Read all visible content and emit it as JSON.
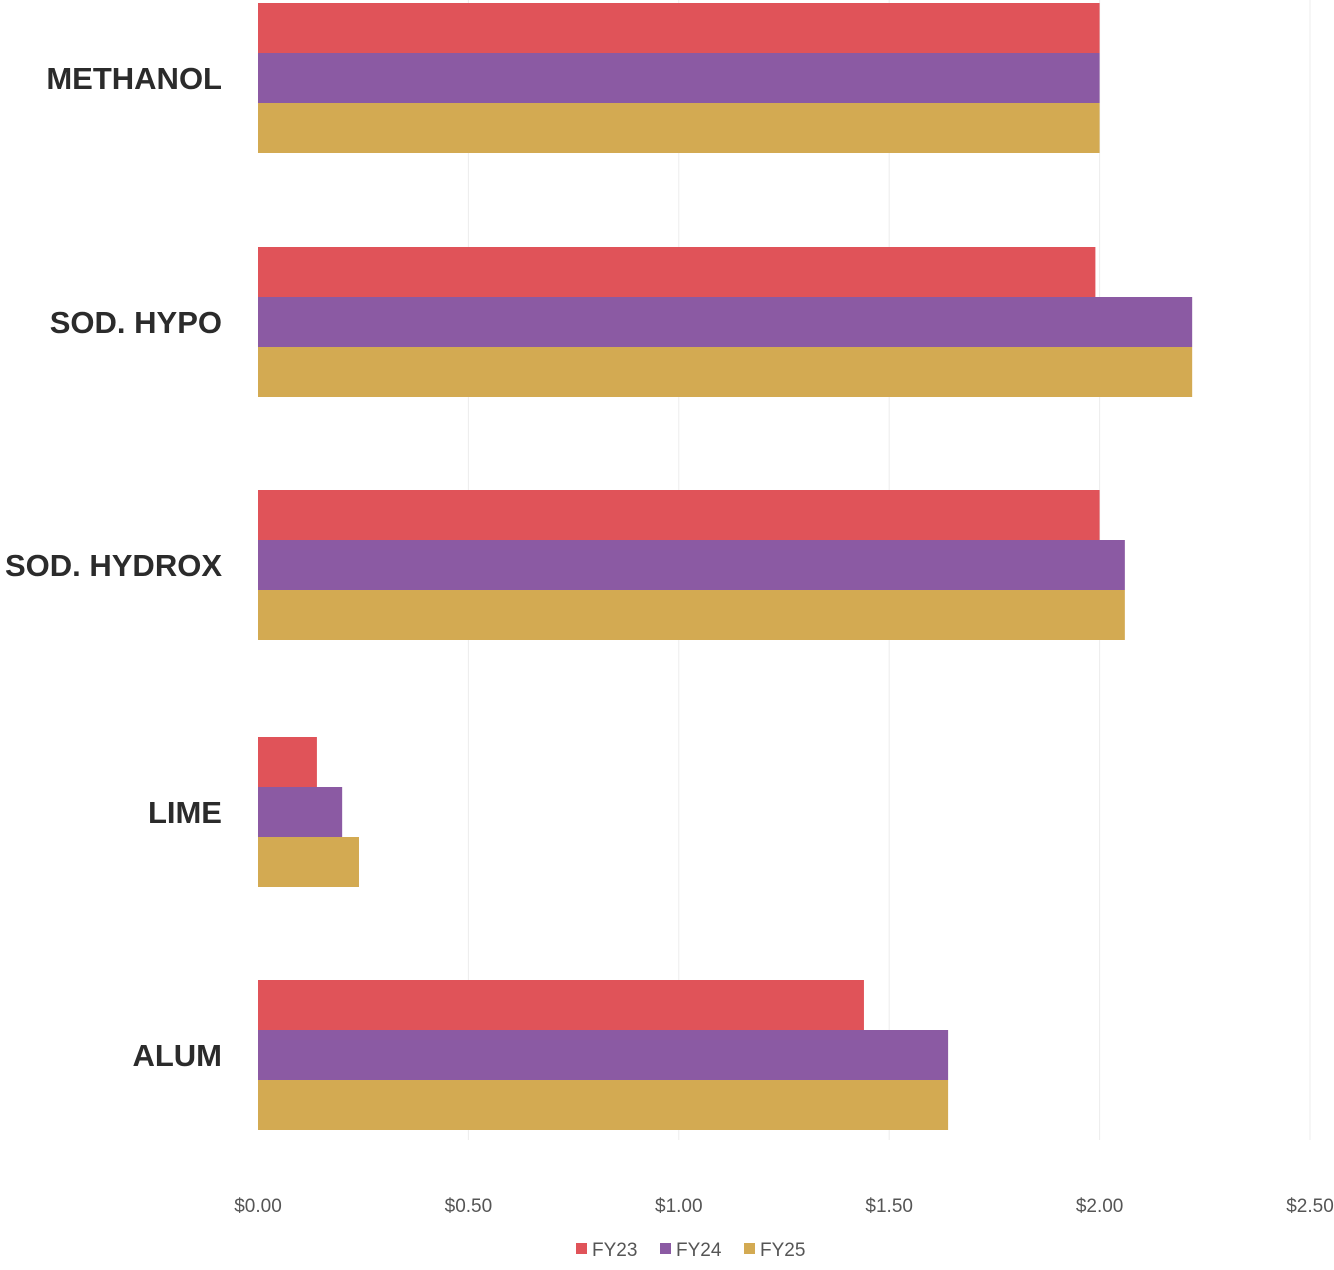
{
  "chart_data": {
    "type": "bar",
    "orientation": "horizontal",
    "categories": [
      "METHANOL",
      "SOD. HYPO",
      "SOD. HYDROX",
      "LIME",
      "ALUM"
    ],
    "series": [
      {
        "name": "FY23",
        "color": "#e05359",
        "values": [
          2.0,
          1.99,
          2.0,
          0.14,
          1.44
        ]
      },
      {
        "name": "FY24",
        "color": "#8b5aa3",
        "values": [
          2.0,
          2.22,
          2.06,
          0.2,
          1.64
        ]
      },
      {
        "name": "FY25",
        "color": "#d3aa52",
        "values": [
          2.0,
          2.22,
          2.06,
          0.24,
          1.64
        ]
      }
    ],
    "x_ticks": [
      "$0.00",
      "$0.50",
      "$1.00",
      "$1.50",
      "$2.00",
      "$2.50"
    ],
    "xlim": [
      0,
      2.5
    ],
    "grid": true,
    "legend": "bottom-center",
    "title": "",
    "xlabel": "",
    "ylabel": ""
  }
}
